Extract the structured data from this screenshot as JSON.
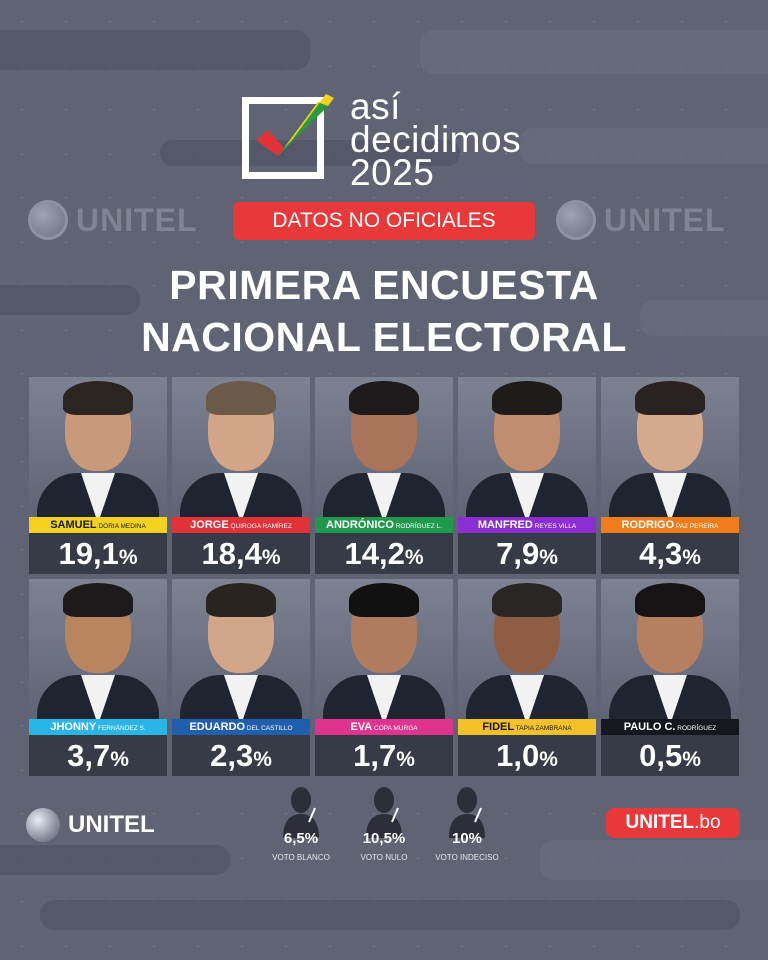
{
  "header": {
    "logo_line1": "así",
    "logo_line2": "decidimos",
    "logo_line3": "2025",
    "badge": "DATOS NO OFICIALES",
    "watermark": "UNITEL",
    "title_line1": "PRIMERA ENCUESTA",
    "title_line2": "NACIONAL ELECTORAL"
  },
  "chart_data": {
    "type": "table",
    "unit": "%",
    "candidates": [
      {
        "first": "SAMUEL",
        "last": "DORIA MEDINA",
        "value": "19,1",
        "color": "#f2d21f",
        "text_color": "#1a1a1a"
      },
      {
        "first": "JORGE",
        "last": "QUIROGA RAMÍREZ",
        "value": "18,4",
        "color": "#e23237",
        "text_color": "#ffffff"
      },
      {
        "first": "ANDRÓNICO",
        "last": "RODRÍGUEZ L.",
        "value": "14,2",
        "color": "#1f9a4c",
        "text_color": "#ffffff"
      },
      {
        "first": "MANFRED",
        "last": "REYES VILLA",
        "value": "7,9",
        "color": "#8a2fd3",
        "text_color": "#ffffff"
      },
      {
        "first": "RODRIGO",
        "last": "PAZ PEREIRA",
        "value": "4,3",
        "color": "#f07d1a",
        "text_color": "#ffffff"
      },
      {
        "first": "JHONNY",
        "last": "FERNÁNDEZ S.",
        "value": "3,7",
        "color": "#29b6e6",
        "text_color": "#ffffff"
      },
      {
        "first": "EDUARDO",
        "last": "DEL CASTILLO",
        "value": "2,3",
        "color": "#1f5fae",
        "text_color": "#ffffff"
      },
      {
        "first": "EVA",
        "last": "COPA MURGA",
        "value": "1,7",
        "color": "#e0338f",
        "text_color": "#ffffff"
      },
      {
        "first": "FIDEL",
        "last": "TAPIA ZAMBRANA",
        "value": "1,0",
        "color": "#f5c12b",
        "text_color": "#1a1a1a"
      },
      {
        "first": "PAULO C.",
        "last": "RODRÍGUEZ",
        "value": "0,5",
        "color": "#15171d",
        "text_color": "#ffffff"
      }
    ],
    "other_votes": [
      {
        "value": "6,5",
        "label": "VOTO BLANCO"
      },
      {
        "value": "10,5",
        "label": "VOTO NULO"
      },
      {
        "value": "10",
        "label": "VOTO INDECISO"
      }
    ]
  },
  "footer": {
    "brand_left": "UNITEL",
    "brand_right_name": "UNITEL",
    "brand_right_tld": ".bo"
  }
}
